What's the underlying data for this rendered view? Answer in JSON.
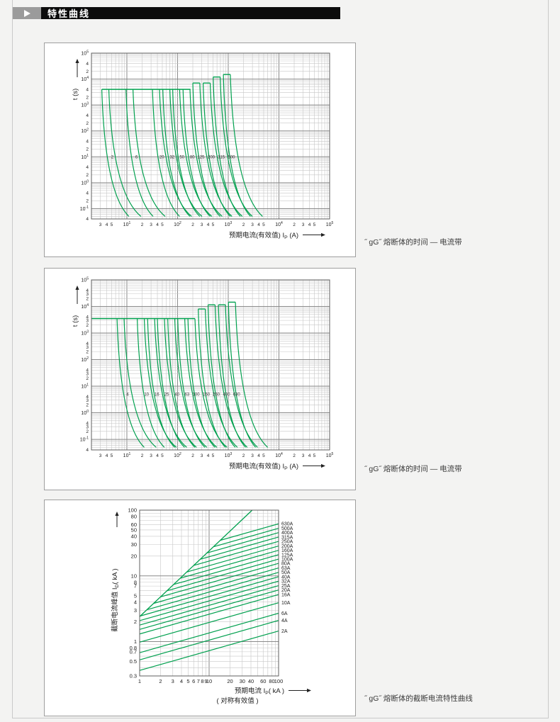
{
  "header": {
    "title": "特性曲线"
  },
  "captions": {
    "chart1": "˝ gG˝  熔断体的时间 — 电流带",
    "chart2": "˝ gG˝  熔断体的时间 — 电流带",
    "chart3": "˝ gG˝  熔断体的截断电流特性曲线"
  },
  "colors": {
    "curve": "#00a04e",
    "grid_minor": "#c7c7c7",
    "grid_major": "#8a8a8a",
    "frame": "#5f5f5f",
    "tick_text": "#222222",
    "label_text": "#333333"
  },
  "chart_data": [
    {
      "type": "line",
      "subtype": "time-current-band",
      "xlabel": "预期电流(有效值) IP (A)",
      "ylabel": "t (s)",
      "xlim": [
        2,
        100000
      ],
      "ylim": [
        0.04,
        100000
      ],
      "grid": true,
      "x_decade_exponents": [
        1,
        2,
        3,
        4,
        5
      ],
      "x_minor_label_digits": [
        2,
        3,
        4,
        5
      ],
      "y_decade_exponents": [
        5,
        4,
        3,
        2,
        1,
        0,
        -1
      ],
      "y_minor_label_digits": [
        4,
        2
      ],
      "series": [
        {
          "rating": 2,
          "cap_time_s": 4000
        },
        {
          "rating": 6,
          "cap_time_s": 4000
        },
        {
          "rating": 20,
          "cap_time_s": 4000
        },
        {
          "rating": 32,
          "cap_time_s": 4000
        },
        {
          "rating": 50,
          "cap_time_s": 4000
        },
        {
          "rating": 80,
          "cap_time_s": 4000
        },
        {
          "rating": 125,
          "cap_time_s": 7000
        },
        {
          "rating": 200,
          "cap_time_s": 7000
        },
        {
          "rating": 315,
          "cap_time_s": 12000
        },
        {
          "rating": 500,
          "cap_time_s": 15000
        }
      ],
      "band_current_multipliers": {
        "top": [
          1.6,
          2.2
        ],
        "bottom": [
          5.5,
          9.5
        ]
      },
      "curve_bottom_time_s": 0.05,
      "common_cap": {
        "time_s": 4000,
        "span_A": [
          3.2,
          180
        ]
      },
      "label_time_s": 10,
      "label_x_multiplier": 2.9
    },
    {
      "type": "line",
      "subtype": "time-current-band",
      "xlabel": "预期电流(有效值) IP (A)",
      "ylabel": "t (s)",
      "xlim": [
        2,
        100000
      ],
      "ylim": [
        0.04,
        100000
      ],
      "grid": true,
      "x_decade_exponents": [
        1,
        2,
        3,
        4,
        5
      ],
      "x_minor_label_digits": [
        2,
        3,
        4,
        5
      ],
      "y_decade_exponents": [
        5,
        4,
        3,
        2,
        1,
        0,
        -1
      ],
      "y_minor_label_digits": [
        4,
        3,
        2
      ],
      "series": [
        {
          "rating": 4,
          "cap_time_s": 3500
        },
        {
          "rating": 10,
          "cap_time_s": 3500
        },
        {
          "rating": 16,
          "cap_time_s": 3500
        },
        {
          "rating": 25,
          "cap_time_s": 3500
        },
        {
          "rating": 40,
          "cap_time_s": 3500
        },
        {
          "rating": 63,
          "cap_time_s": 3500
        },
        {
          "rating": 100,
          "cap_time_s": 3500
        },
        {
          "rating": 160,
          "cap_time_s": 8000
        },
        {
          "rating": 250,
          "cap_time_s": 11500
        },
        {
          "rating": 400,
          "cap_time_s": 11500
        },
        {
          "rating": 630,
          "cap_time_s": 14500
        }
      ],
      "band_current_multipliers": {
        "top": [
          1.6,
          2.2
        ],
        "bottom": [
          5.5,
          9.5
        ]
      },
      "curve_bottom_time_s": 0.05,
      "common_cap": {
        "time_s": 3500,
        "span_A": [
          2,
          220
        ]
      },
      "label_time_s": 5,
      "label_x_multiplier": 2.9
    },
    {
      "type": "line",
      "subtype": "cutoff-current",
      "xlabel": "预期电流 IP( kA )",
      "xlabel_sub": "( 对称有效值 )",
      "ylabel": "截断电流峰值 ID( kA )",
      "xlim": [
        1,
        100
      ],
      "ylim": [
        0.3,
        100
      ],
      "grid": true,
      "x_tick_labels": [
        1,
        2,
        3,
        4,
        5,
        6,
        7,
        8,
        9,
        10,
        20,
        30,
        40,
        60,
        80,
        100
      ],
      "y_tick_labels": [
        100,
        80,
        60,
        50,
        40,
        30,
        20,
        10,
        8,
        7,
        5,
        4,
        3,
        2,
        1,
        0.8,
        0.7,
        0.5,
        0.3
      ],
      "slope_log": 0.3,
      "peak_line": {
        "from": [
          1,
          2.4
        ],
        "slope": 1
      },
      "series": [
        {
          "rating": "630A",
          "cutoff_kA_at_100kA": 62
        },
        {
          "rating": "500A",
          "cutoff_kA_at_100kA": 53
        },
        {
          "rating": "400A",
          "cutoff_kA_at_100kA": 45.5
        },
        {
          "rating": "315A",
          "cutoff_kA_at_100kA": 39
        },
        {
          "rating": "250A",
          "cutoff_kA_at_100kA": 33.5
        },
        {
          "rating": "200A",
          "cutoff_kA_at_100kA": 28.5
        },
        {
          "rating": "160A",
          "cutoff_kA_at_100kA": 24.5
        },
        {
          "rating": "125A",
          "cutoff_kA_at_100kA": 21
        },
        {
          "rating": "100A",
          "cutoff_kA_at_100kA": 18
        },
        {
          "rating": "80A",
          "cutoff_kA_at_100kA": 15.5
        },
        {
          "rating": "63A",
          "cutoff_kA_at_100kA": 13.2
        },
        {
          "rating": "50A",
          "cutoff_kA_at_100kA": 11.3
        },
        {
          "rating": "40A",
          "cutoff_kA_at_100kA": 9.7
        },
        {
          "rating": "32A",
          "cutoff_kA_at_100kA": 8.3
        },
        {
          "rating": "25A",
          "cutoff_kA_at_100kA": 7.1
        },
        {
          "rating": "20A",
          "cutoff_kA_at_100kA": 6.1
        },
        {
          "rating": "16A",
          "cutoff_kA_at_100kA": 5.2
        },
        {
          "rating": "10A",
          "cutoff_kA_at_100kA": 3.9
        },
        {
          "rating": "6A",
          "cutoff_kA_at_100kA": 2.7
        },
        {
          "rating": "4A",
          "cutoff_kA_at_100kA": 2.1
        },
        {
          "rating": "2A",
          "cutoff_kA_at_100kA": 1.45
        }
      ]
    }
  ]
}
